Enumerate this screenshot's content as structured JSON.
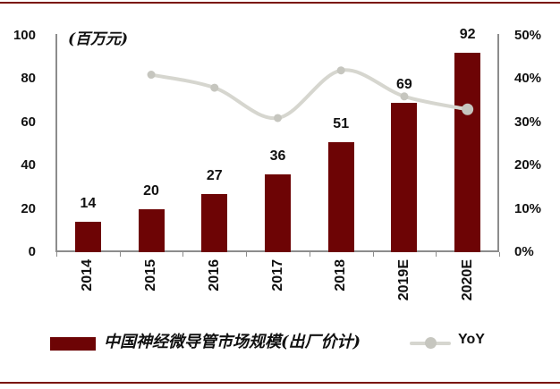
{
  "page": {
    "background": "#ffffff",
    "accent_rule_color": "#7a1205"
  },
  "chart_data": {
    "type": "bar+line combo",
    "title": "",
    "unit_label": "(百万元)",
    "categories": [
      "2014",
      "2015",
      "2016",
      "2017",
      "2018",
      "2019E",
      "2020E"
    ],
    "series": [
      {
        "name": "中国神经微导管市场规模(出厂价计)",
        "type": "bar",
        "axis": "left",
        "values": [
          14,
          20,
          27,
          36,
          51,
          69,
          92
        ],
        "labels": [
          "14",
          "20",
          "27",
          "36",
          "51",
          "69",
          "92"
        ],
        "color": "#6d0405"
      },
      {
        "name": "YoY",
        "type": "line",
        "axis": "right",
        "values_percent": [
          null,
          41,
          38,
          31,
          42,
          36,
          33
        ],
        "color": "#d6d6cf",
        "marker_color": "#c6c6bf"
      }
    ],
    "left_axis": {
      "label": "(百万元)",
      "range": [
        0,
        100
      ],
      "tick_values": [
        100,
        80,
        60,
        40,
        20,
        0
      ],
      "tick_labels": [
        "100",
        "80",
        "60",
        "40",
        "20",
        "0"
      ]
    },
    "right_axis": {
      "range_percent": [
        0,
        50
      ],
      "tick_values": [
        50,
        40,
        30,
        20,
        10,
        0
      ],
      "tick_labels": [
        "50%",
        "40%",
        "30%",
        "20%",
        "10%",
        "0%"
      ]
    },
    "grid": false,
    "legend_position": "bottom",
    "axis_color": "#8c8c8c",
    "text_color": "#111111"
  }
}
